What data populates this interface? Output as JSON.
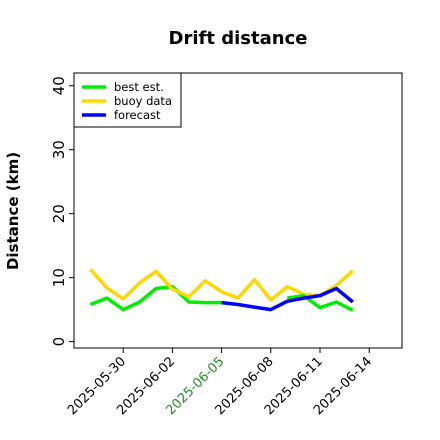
{
  "chart_data": {
    "type": "line",
    "title": "Drift distance",
    "xlabel": "",
    "ylabel": "Distance (km)",
    "ylim": [
      -1,
      42
    ],
    "xlim": [
      "2025-05-27",
      "2025-06-16"
    ],
    "yticks": [
      0,
      10,
      20,
      30,
      40
    ],
    "xticks": [
      "2025-05-30",
      "2025-06-02",
      "2025-06-05",
      "2025-06-08",
      "2025-06-11",
      "2025-06-14"
    ],
    "highlight_tick": "2025-06-05",
    "highlight_color": "#228B22",
    "legend_position": "top-left",
    "grid": false,
    "series": [
      {
        "name": "best est.",
        "color": "#00ee00",
        "x": [
          "2025-05-28",
          "2025-05-29",
          "2025-05-30",
          "2025-05-31",
          "2025-06-01",
          "2025-06-02",
          "2025-06-03",
          "2025-06-04",
          "2025-06-05"
        ],
        "y": [
          5.8,
          6.8,
          5.0,
          6.2,
          8.3,
          8.6,
          6.2,
          6.1,
          6.1
        ]
      },
      {
        "name": "buoy data",
        "color": "#ffd700",
        "x": [
          "2025-05-28",
          "2025-05-29",
          "2025-05-30",
          "2025-05-31",
          "2025-06-01",
          "2025-06-02",
          "2025-06-03",
          "2025-06-04",
          "2025-06-05",
          "2025-06-06",
          "2025-06-07",
          "2025-06-08",
          "2025-06-09",
          "2025-06-10",
          "2025-06-11",
          "2025-06-12",
          "2025-06-13"
        ],
        "y": [
          11.3,
          8.4,
          6.7,
          9.2,
          11.0,
          8.2,
          7.0,
          9.5,
          7.8,
          6.8,
          9.7,
          6.5,
          8.6,
          7.4,
          7.2,
          8.8,
          11.1
        ]
      },
      {
        "name": "best est.",
        "color": "#00ee00",
        "x": [
          "2025-06-09",
          "2025-06-10",
          "2025-06-11",
          "2025-06-12",
          "2025-06-13"
        ],
        "y": [
          6.8,
          7.2,
          5.3,
          6.2,
          4.9
        ]
      },
      {
        "name": "forecast",
        "color": "#0000ff",
        "x": [
          "2025-06-05",
          "2025-06-06",
          "2025-06-07",
          "2025-06-08",
          "2025-06-09",
          "2025-06-10",
          "2025-06-11",
          "2025-06-12",
          "2025-06-13"
        ],
        "y": [
          6.1,
          5.8,
          5.4,
          5.0,
          6.3,
          6.8,
          7.2,
          8.3,
          6.2
        ]
      }
    ],
    "legend": [
      {
        "label": "best est.",
        "color": "#00ee00"
      },
      {
        "label": "buoy data",
        "color": "#ffd700"
      },
      {
        "label": "forecast",
        "color": "#0000ff"
      }
    ]
  }
}
